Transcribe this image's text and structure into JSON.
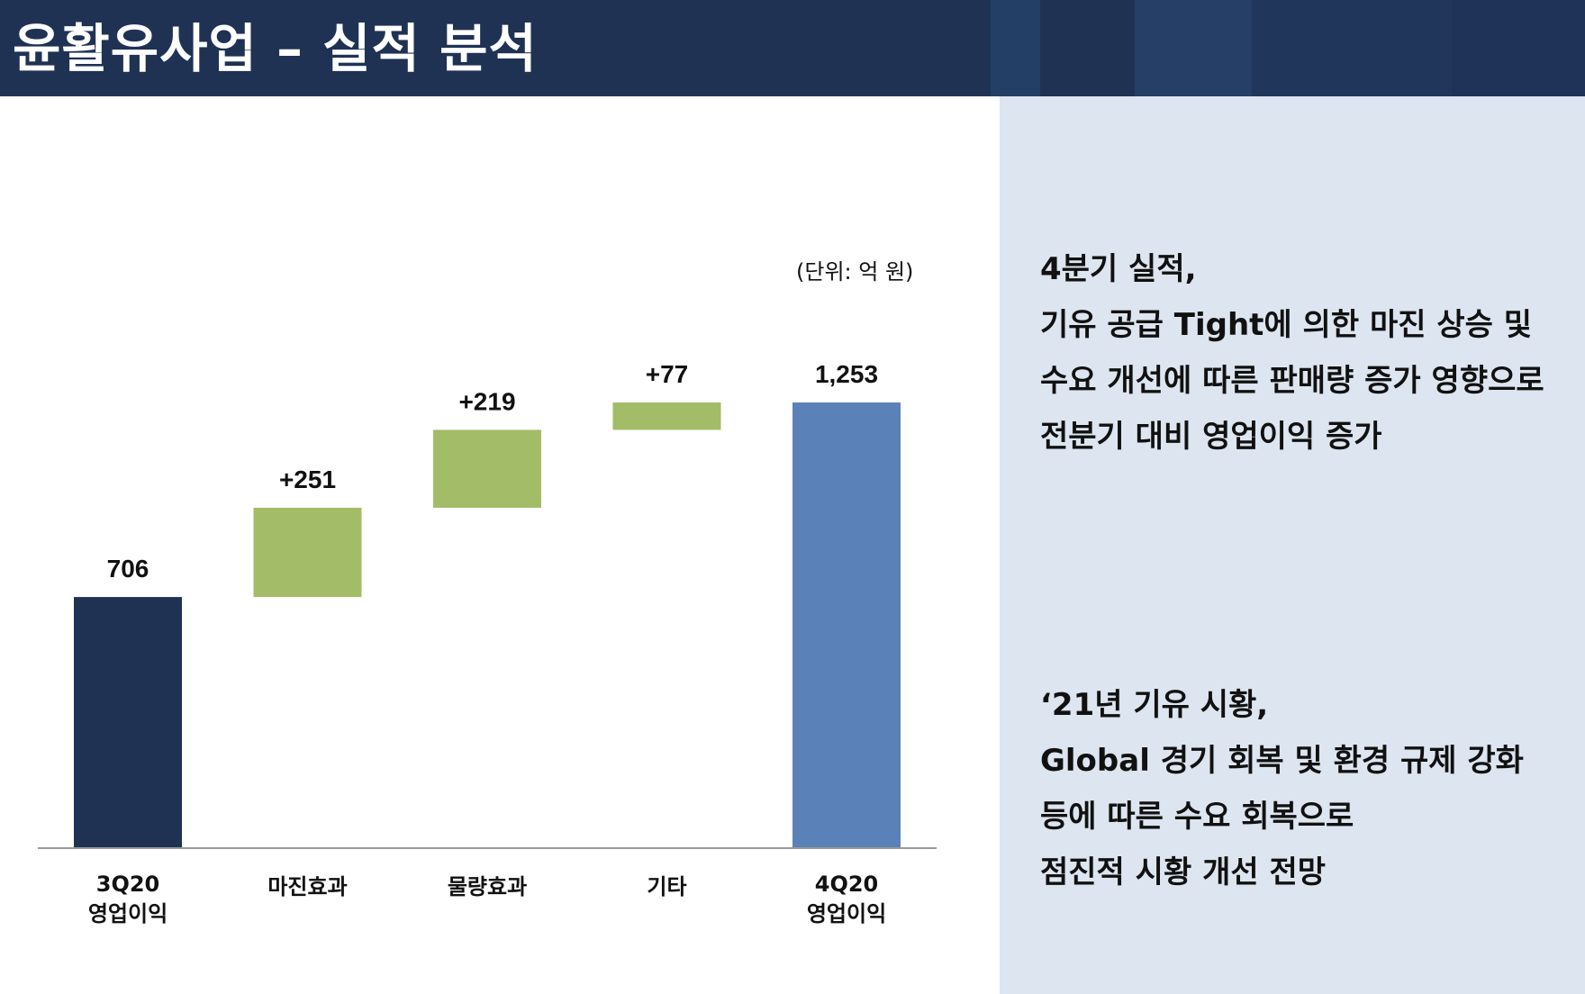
{
  "header": {
    "title": "윤활유사업 – 실적 분석",
    "bg_color": "#1f3254",
    "strip_colors": [
      "#233f66",
      "#1f3254",
      "#263f66",
      "#20365b",
      "#1e3357"
    ]
  },
  "chart_data": {
    "type": "bar",
    "subtype": "waterfall",
    "unit_label": "(단위: 억 원)",
    "categories": [
      [
        "3Q20",
        "영업이익"
      ],
      [
        "마진효과"
      ],
      [
        "물량효과"
      ],
      [
        "기타"
      ],
      [
        "4Q20",
        "영업이익"
      ]
    ],
    "bars": [
      {
        "kind": "total",
        "start": 0,
        "end": 706,
        "label": "706",
        "color": "#1f3254"
      },
      {
        "kind": "delta",
        "start": 706,
        "end": 957,
        "label": "+251",
        "color": "#a3bc68"
      },
      {
        "kind": "delta",
        "start": 957,
        "end": 1176,
        "label": "+219",
        "color": "#a3bc68"
      },
      {
        "kind": "delta",
        "start": 1176,
        "end": 1253,
        "label": "+77",
        "color": "#a3bc68"
      },
      {
        "kind": "total",
        "start": 0,
        "end": 1253,
        "label": "1,253",
        "color": "#5b82b8"
      }
    ],
    "ylim": [
      0,
      1253
    ],
    "axis_color": "#999999"
  },
  "notes": [
    {
      "lines": [
        "4분기 실적,",
        "기유 공급 Tight에 의한 마진 상승 및",
        "수요 개선에 따른 판매량 증가 영향으로",
        "전분기 대비 영업이익 증가"
      ]
    },
    {
      "lines": [
        "‘21년 기유 시황,",
        "Global 경기 회복 및 환경 규제 강화",
        "등에 따른 수요 회복으로",
        "점진적 시황 개선 전망"
      ]
    }
  ]
}
